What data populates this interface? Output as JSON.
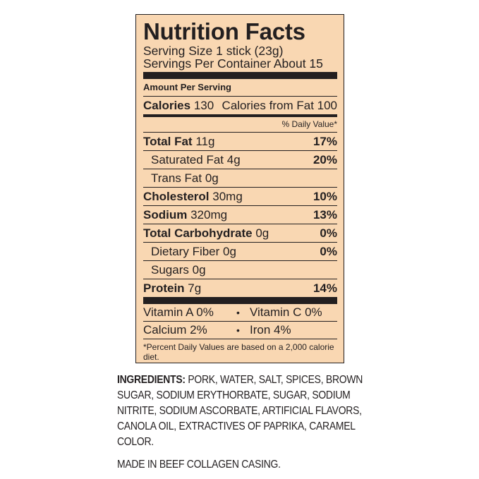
{
  "label": {
    "title": "Nutrition Facts",
    "serving_size": "Serving Size 1 stick (23g)",
    "servings_per_container": "Servings Per Container About 15",
    "amount_per_serving": "Amount Per Serving",
    "calories_label": "Calories",
    "calories_value": "130",
    "calories_from_fat": "Calories from Fat 100",
    "daily_value_header": "% Daily Value*",
    "nutrients": [
      {
        "name": "Total Fat",
        "amount": "11g",
        "dv": "17%"
      },
      {
        "name": "Saturated Fat",
        "amount": "4g",
        "dv": "20%"
      },
      {
        "name": "Trans Fat",
        "amount": "0g",
        "dv": ""
      },
      {
        "name": "Cholesterol",
        "amount": "30mg",
        "dv": "10%"
      },
      {
        "name": "Sodium",
        "amount": "320mg",
        "dv": "13%"
      },
      {
        "name": "Total Carbohydrate",
        "amount": "0g",
        "dv": "0%"
      },
      {
        "name": "Dietary Fiber",
        "amount": "0g",
        "dv": "0%"
      },
      {
        "name": "Sugars",
        "amount": "0g",
        "dv": ""
      },
      {
        "name": "Protein",
        "amount": "7g",
        "dv": "14%"
      }
    ],
    "vitamins": [
      [
        "Vitamin A 0%",
        "Vitamin C 0%"
      ],
      [
        "Calcium 2%",
        "Iron 4%"
      ]
    ],
    "bullet": "•",
    "footnote": "*Percent Daily Values are based on a 2,000 calorie diet."
  },
  "ingredients_label": "INGREDIENTS:",
  "ingredients": "PORK, WATER, SALT, SPICES, BROWN SUGAR, SODIUM ERYTHORBATE, SUGAR, SODIUM NITRITE, SODIUM ASCORBATE, ARTIFICIAL FLAVORS, CANOLA OIL, EXTRACTIVES OF PAPRIKA, CARAMEL COLOR.",
  "casing_note": "MADE IN BEEF COLLAGEN CASING.",
  "colors": {
    "background": "#f9d7b2",
    "ink": "#231f20"
  }
}
